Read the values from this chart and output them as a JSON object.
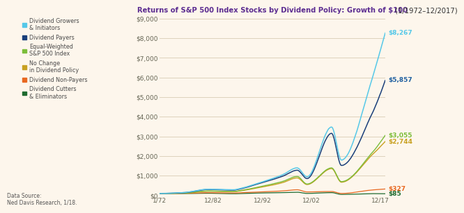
{
  "title_bold": "Returns of S&P 500 Index Stocks by Dividend Policy: Growth of $100",
  "title_normal": " (1/1972–12/2017)",
  "background_color": "#fdf6ec",
  "title_color_bold": "#5c2d91",
  "title_color_normal": "#333333",
  "x_ticks": [
    "1/72",
    "12/82",
    "12/92",
    "12/02",
    "12/17"
  ],
  "y_ticks": [
    0,
    1000,
    2000,
    3000,
    4000,
    5000,
    6000,
    7000,
    8000,
    9000
  ],
  "y_max": 9000,
  "series": {
    "growers": {
      "label": "Dividend Growers\n& Initiators",
      "color": "#55c8e8",
      "end_value": "$8,267",
      "end_color": "#55c8e8",
      "final": 8267
    },
    "payers": {
      "label": "Dividend Payers",
      "color": "#1a3f7a",
      "end_value": "$5,857",
      "end_color": "#2060a0",
      "final": 5857
    },
    "equal_weight": {
      "label": "Equal-Weighted\nS&P 500 Index",
      "color": "#7cbd3a",
      "end_value": "$3,055",
      "end_color": "#7cbd3a",
      "final": 3055
    },
    "no_change": {
      "label": "No Change\nin Dividend Policy",
      "color": "#c8a020",
      "end_value": "$2,744",
      "end_color": "#c8a020",
      "final": 2744
    },
    "non_payers": {
      "label": "Dividend Non-Payers",
      "color": "#e86820",
      "end_value": "$327",
      "end_color": "#e86820",
      "final": 327
    },
    "cutters": {
      "label": "Dividend Cutters\n& Eliminators",
      "color": "#1e6b30",
      "end_value": "$85",
      "end_color": "#1e6b30",
      "final": 85
    }
  },
  "data_source": "Data Source:\nNed Davis Research, 1/18.",
  "legend_colors": [
    "#55c8e8",
    "#1a3f7a",
    "#7cbd3a",
    "#c8a020",
    "#e86820",
    "#1e6b30"
  ]
}
